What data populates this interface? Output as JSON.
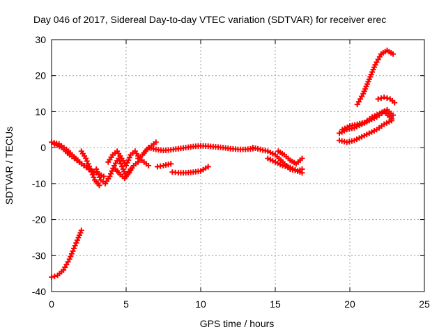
{
  "chart_data": {
    "type": "scatter",
    "title": "Day 046 of 2017, Sidereal Day-to-day VTEC variation (SDTVAR) for receiver erec",
    "xlabel": "GPS time / hours",
    "ylabel": "SDTVAR / TECUs",
    "xlim": [
      0,
      25
    ],
    "ylim": [
      -40,
      30
    ],
    "xticks": [
      0,
      5,
      10,
      15,
      20,
      25
    ],
    "yticks": [
      -40,
      -30,
      -20,
      -10,
      0,
      10,
      20,
      30
    ],
    "grid": true,
    "marker": "+",
    "color": "#ff0000",
    "series": [
      {
        "x": [
          0.0,
          0.4,
          0.8,
          1.2,
          1.5,
          1.8,
          2.0
        ],
        "y": [
          -36,
          -35.5,
          -34,
          -31,
          -28,
          -25,
          -23
        ]
      },
      {
        "x": [
          0.0,
          0.5,
          1.0,
          1.5,
          2.0,
          2.5,
          3.0,
          3.5
        ],
        "y": [
          1.5,
          1.0,
          -0.5,
          -2.5,
          -4.5,
          -6.0,
          -7.0,
          -8.0
        ]
      },
      {
        "x": [
          0.2,
          0.7,
          1.2,
          1.7,
          2.2,
          2.7
        ],
        "y": [
          1.0,
          0.0,
          -2.0,
          -3.5,
          -5.0,
          -6.5
        ]
      },
      {
        "x": [
          2.0,
          2.3,
          2.6,
          2.9,
          3.2
        ],
        "y": [
          -1.0,
          -3.0,
          -6.0,
          -9.0,
          -10.5
        ]
      },
      {
        "x": [
          3.0,
          3.3,
          3.6,
          3.9,
          4.2,
          4.5,
          4.8,
          5.0,
          5.3
        ],
        "y": [
          -6.0,
          -9.0,
          -10.0,
          -8.0,
          -5.0,
          -3.0,
          -6.0,
          -8.0,
          -6.0
        ]
      },
      {
        "x": [
          3.8,
          4.1,
          4.4,
          4.7,
          5.0,
          5.3,
          5.6,
          5.9,
          6.2,
          6.5
        ],
        "y": [
          -4.0,
          -2.0,
          -1.0,
          -3.0,
          -5.0,
          -2.0,
          -1.0,
          -3.0,
          -4.0,
          -5.0
        ]
      },
      {
        "x": [
          4.3,
          4.6,
          4.9,
          5.2,
          5.5,
          5.8
        ],
        "y": [
          -6.0,
          -7.5,
          -8.5,
          -7.0,
          -5.0,
          -4.0
        ]
      },
      {
        "x": [
          5.8,
          6.1,
          6.4,
          6.7,
          7.0
        ],
        "y": [
          -3.0,
          -2.0,
          -0.5,
          0.5,
          1.5
        ]
      },
      {
        "x": [
          6.5,
          7.0,
          7.5,
          8.0,
          8.5,
          9.0,
          9.5,
          10.0,
          10.5,
          11.0,
          11.5,
          12.0,
          12.5,
          13.0,
          13.5
        ],
        "y": [
          0.0,
          -0.5,
          -0.8,
          -0.6,
          -0.3,
          0.0,
          0.3,
          0.5,
          0.4,
          0.2,
          0.0,
          -0.3,
          -0.5,
          -0.5,
          -0.3
        ]
      },
      {
        "x": [
          7.1,
          7.5,
          8.0
        ],
        "y": [
          -5.3,
          -5.0,
          -4.5
        ]
      },
      {
        "x": [
          8.1,
          8.5,
          9.0,
          9.5,
          10.0,
          10.5
        ],
        "y": [
          -6.8,
          -7.0,
          -7.0,
          -6.8,
          -6.5,
          -5.3
        ]
      },
      {
        "x": [
          13.5,
          14.0,
          14.5,
          15.0,
          15.5,
          16.0,
          16.5,
          16.8
        ],
        "y": [
          0.0,
          -0.5,
          -1.0,
          -2.0,
          -4.0,
          -6.0,
          -6.5,
          -6.0
        ]
      },
      {
        "x": [
          14.5,
          15.0,
          15.5,
          16.0,
          16.5,
          16.8
        ],
        "y": [
          -3.0,
          -4.0,
          -5.0,
          -5.5,
          -6.5,
          -7.0
        ]
      },
      {
        "x": [
          15.2,
          15.6,
          16.0,
          16.4,
          16.8
        ],
        "y": [
          -1.0,
          -2.0,
          -3.5,
          -4.5,
          -3.0
        ]
      },
      {
        "x": [
          19.3,
          19.8,
          20.3,
          20.8,
          21.3,
          21.8,
          22.3,
          22.8
        ],
        "y": [
          2.0,
          1.5,
          2.0,
          3.0,
          4.0,
          5.0,
          6.5,
          7.5
        ]
      },
      {
        "x": [
          19.3,
          19.8,
          20.3,
          20.8,
          21.3,
          21.8,
          22.3,
          22.8
        ],
        "y": [
          4.0,
          5.0,
          5.5,
          6.5,
          7.5,
          8.5,
          10.0,
          8.0
        ]
      },
      {
        "x": [
          19.5,
          20.0,
          20.5,
          21.0,
          21.5,
          22.0,
          22.5,
          22.9
        ],
        "y": [
          5.0,
          6.0,
          6.5,
          7.0,
          8.5,
          9.5,
          10.5,
          9.0
        ]
      },
      {
        "x": [
          20.5,
          20.9,
          21.3,
          21.7,
          22.1,
          22.5,
          22.9
        ],
        "y": [
          12.0,
          15.0,
          19.0,
          23.0,
          26.0,
          27.0,
          26.0
        ]
      },
      {
        "x": [
          21.9,
          22.3,
          22.7,
          23.0
        ],
        "y": [
          13.5,
          14.0,
          13.5,
          12.5
        ]
      }
    ]
  }
}
